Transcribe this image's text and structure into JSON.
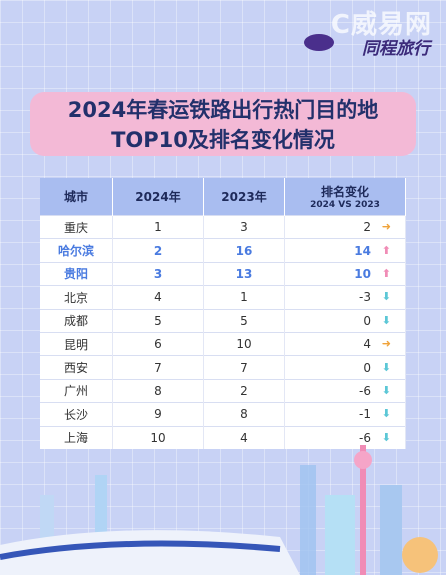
{
  "header": {
    "watermark": "C威易网",
    "brand": "同程旅行",
    "title": [
      "2024年春运铁路出行热门目的地",
      "TOP10及排名变化情况"
    ]
  },
  "table": {
    "columns": [
      "城市",
      "2024年",
      "2023年",
      "排名变化"
    ],
    "change_subtitle": "2024 VS 2023",
    "rows": [
      [
        "重庆",
        1,
        3,
        2
      ],
      [
        "哈尔滨",
        2,
        16,
        14
      ],
      [
        "贵阳",
        3,
        13,
        10
      ],
      [
        "北京",
        4,
        1,
        -3
      ],
      [
        "成都",
        5,
        5,
        0
      ],
      [
        "昆明",
        6,
        10,
        4
      ],
      [
        "西安",
        7,
        7,
        0
      ],
      [
        "广州",
        8,
        2,
        -6
      ],
      [
        "长沙",
        9,
        8,
        -1
      ],
      [
        "上海",
        10,
        4,
        -6
      ]
    ]
  }
}
